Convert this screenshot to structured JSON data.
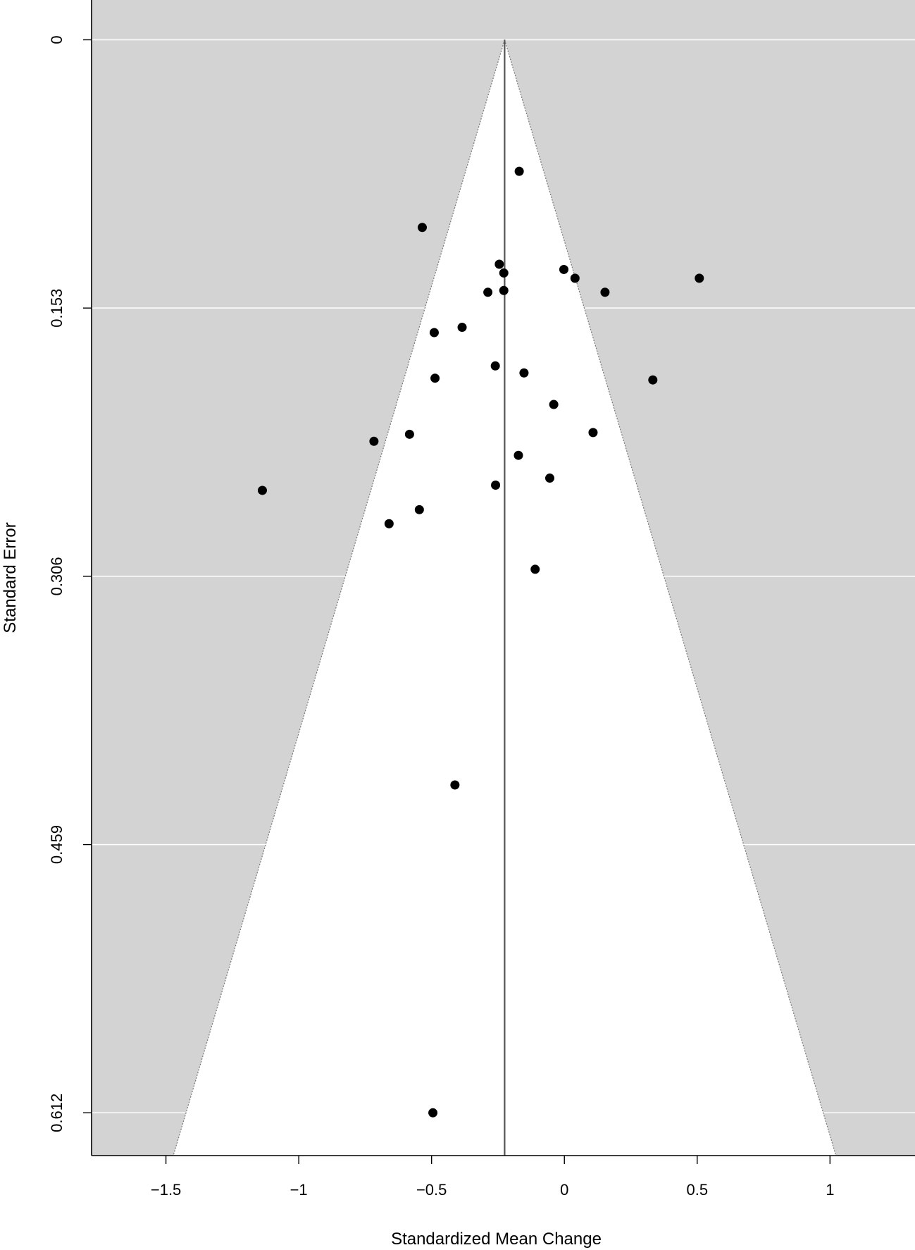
{
  "chart_data": {
    "type": "scatter",
    "subtype": "funnel",
    "xlabel": "Standardized Mean Change",
    "ylabel": "Standard Error",
    "xlim": [
      -1.78,
      1.32
    ],
    "ylim": [
      0.6364,
      -0.0227
    ],
    "y_reversed": true,
    "x_ticks": [
      -1.5,
      -1,
      -0.5,
      0,
      0.5,
      1
    ],
    "x_tick_labels": [
      "−1.5",
      "−1",
      "−0.5",
      "0",
      "0.5",
      "1"
    ],
    "y_ticks": [
      0,
      0.153,
      0.306,
      0.459,
      0.612
    ],
    "y_tick_labels": [
      "0",
      "0.153",
      "0.306",
      "0.459",
      "0.612"
    ],
    "grid": "horizontal",
    "pooled_estimate": -0.225,
    "funnel_multiplier": 1.96,
    "colors": {
      "panel": "#d3d3d3",
      "funnel": "#ffffff",
      "grid": "#ffffff",
      "points": "#000000",
      "reference_line": "#555555"
    },
    "points": [
      {
        "x": -0.17,
        "y": 0.075
      },
      {
        "x": -0.535,
        "y": 0.107
      },
      {
        "x": -0.245,
        "y": 0.128
      },
      {
        "x": -0.228,
        "y": 0.133
      },
      {
        "x": -0.002,
        "y": 0.131
      },
      {
        "x": 0.04,
        "y": 0.136
      },
      {
        "x": 0.508,
        "y": 0.136
      },
      {
        "x": -0.288,
        "y": 0.144
      },
      {
        "x": -0.228,
        "y": 0.143
      },
      {
        "x": 0.153,
        "y": 0.144
      },
      {
        "x": -0.385,
        "y": 0.164
      },
      {
        "x": -0.49,
        "y": 0.167
      },
      {
        "x": -0.26,
        "y": 0.186
      },
      {
        "x": -0.152,
        "y": 0.19
      },
      {
        "x": -0.487,
        "y": 0.193
      },
      {
        "x": 0.333,
        "y": 0.194
      },
      {
        "x": -0.04,
        "y": 0.208
      },
      {
        "x": -0.583,
        "y": 0.225
      },
      {
        "x": 0.108,
        "y": 0.224
      },
      {
        "x": -0.717,
        "y": 0.229
      },
      {
        "x": -0.173,
        "y": 0.237
      },
      {
        "x": -0.055,
        "y": 0.25
      },
      {
        "x": -0.259,
        "y": 0.254
      },
      {
        "x": -1.137,
        "y": 0.257
      },
      {
        "x": -0.546,
        "y": 0.268
      },
      {
        "x": -0.66,
        "y": 0.276
      },
      {
        "x": -0.11,
        "y": 0.302
      },
      {
        "x": -0.412,
        "y": 0.425
      },
      {
        "x": -0.495,
        "y": 0.612
      }
    ]
  }
}
